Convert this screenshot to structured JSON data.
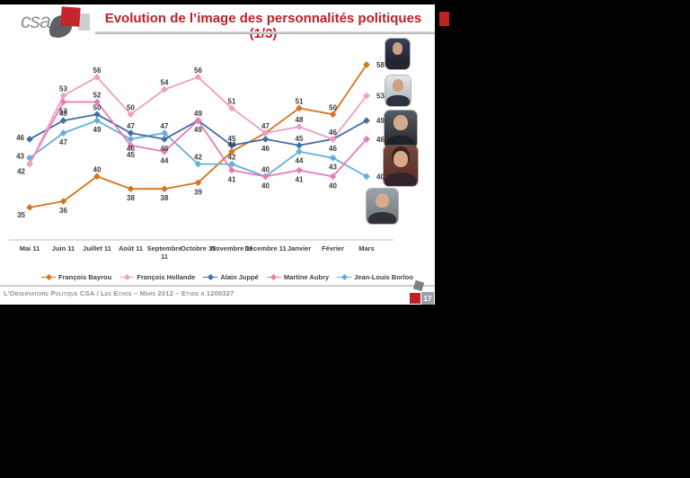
{
  "header": {
    "logo_text": "csa",
    "title": "Evolution de l’image des personnalités politiques (1/3)",
    "title_color": "#be2127"
  },
  "chart_data": {
    "type": "line",
    "categories": [
      "Mai 11",
      "Juin 11",
      "Juillet 11",
      "Août 11",
      "Septembre\n11",
      "Octobre 11",
      "Novembre 11",
      "Décembre 11",
      "Janvier",
      "Février",
      "Mars"
    ],
    "series": [
      {
        "name": "François Bayrou",
        "color": "#D9741E",
        "values": [
          35,
          36,
          40,
          38,
          38,
          39,
          44,
          47,
          51,
          50,
          58
        ],
        "label_pos": [
          "lb",
          "b",
          "a",
          "b",
          "b",
          "b",
          "a",
          "h",
          "a",
          "a",
          "r"
        ]
      },
      {
        "name": "François Hollande",
        "color": "#EE9EC7",
        "values": [
          42,
          53,
          56,
          50,
          54,
          56,
          51,
          47,
          48,
          46,
          53
        ],
        "label_pos": [
          "lb",
          "a",
          "a",
          "a",
          "a",
          "a",
          "a",
          "a",
          "a",
          "a",
          "r"
        ]
      },
      {
        "name": "Alain Juppé",
        "color": "#3F6EA8",
        "values": [
          46,
          49,
          50,
          47,
          46,
          49,
          45,
          46,
          45,
          46,
          49
        ],
        "label_pos": [
          "la",
          "a",
          "a",
          "a",
          "b",
          "b",
          "a",
          "b",
          "a",
          "b",
          "r"
        ]
      },
      {
        "name": "Martine Aubry",
        "color": "#E97AB7",
        "values": [
          42,
          52,
          52,
          45,
          44,
          49,
          41,
          40,
          41,
          40,
          46
        ],
        "label_pos": [
          "h",
          "b",
          "a",
          "b",
          "b",
          "a",
          "b",
          "b",
          "b",
          "b",
          "r"
        ]
      },
      {
        "name": "Jean-Louis Borloo",
        "color": "#66ACDC",
        "values": [
          43,
          47,
          49,
          46,
          47,
          42,
          42,
          40,
          44,
          43,
          40
        ],
        "label_pos": [
          "la",
          "b",
          "b",
          "b",
          "a",
          "a",
          "a",
          "a",
          "b",
          "b",
          "r"
        ]
      }
    ],
    "ylim": [
      33,
      60
    ],
    "grid": false,
    "legend_position": "bottom"
  },
  "photos": [
    {
      "id": "francois-bayrou",
      "person": "François Bayrou"
    },
    {
      "id": "francois-hollande",
      "person": "François Hollande"
    },
    {
      "id": "alain-juppe",
      "person": "Alain Juppé"
    },
    {
      "id": "martine-aubry",
      "person": "Martine Aubry"
    },
    {
      "id": "jean-louis-borloo",
      "person": "Jean-Louis Borloo"
    }
  ],
  "footer": {
    "text": "L’Observatoire Politique CSA / Les Echos – Mars 2012 – Etude n 1200327",
    "page": "17"
  }
}
